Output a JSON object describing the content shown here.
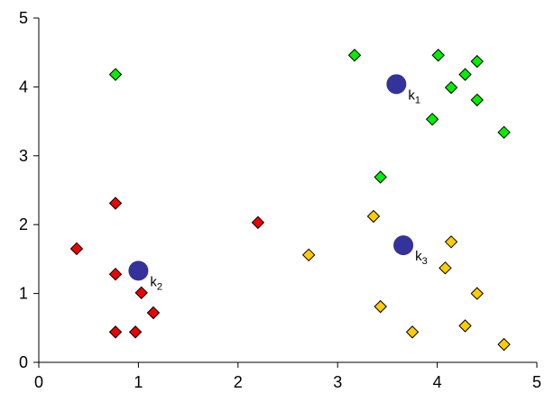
{
  "chart_data": {
    "type": "scatter",
    "title": "",
    "xlabel": "",
    "ylabel": "",
    "xlim": [
      0,
      5
    ],
    "ylim": [
      0,
      5
    ],
    "x_ticks": [
      "0",
      "1",
      "2",
      "3",
      "4",
      "5"
    ],
    "y_ticks": [
      "0",
      "1",
      "2",
      "3",
      "4",
      "5"
    ],
    "grid": false,
    "legend": "none",
    "series": [
      {
        "color": "#00ee00",
        "marker": "diamond",
        "points": [
          [
            0.77,
            4.18
          ],
          [
            3.17,
            4.46
          ],
          [
            4.01,
            4.46
          ],
          [
            4.4,
            4.37
          ],
          [
            4.28,
            4.18
          ],
          [
            4.14,
            3.99
          ],
          [
            4.4,
            3.81
          ],
          [
            3.95,
            3.53
          ],
          [
            4.67,
            3.34
          ],
          [
            3.43,
            2.69
          ]
        ]
      },
      {
        "color": "#ee0000",
        "marker": "diamond",
        "points": [
          [
            0.77,
            2.31
          ],
          [
            2.2,
            2.03
          ],
          [
            0.38,
            1.65
          ],
          [
            0.77,
            1.28
          ],
          [
            1.03,
            1.01
          ],
          [
            1.15,
            0.72
          ],
          [
            0.77,
            0.44
          ],
          [
            0.97,
            0.44
          ]
        ]
      },
      {
        "color": "#ffcc00",
        "marker": "diamond",
        "points": [
          [
            3.36,
            2.12
          ],
          [
            4.14,
            1.75
          ],
          [
            2.71,
            1.56
          ],
          [
            4.08,
            1.37
          ],
          [
            4.4,
            1.0
          ],
          [
            3.43,
            0.81
          ],
          [
            4.28,
            0.53
          ],
          [
            3.75,
            0.44
          ],
          [
            4.67,
            0.26
          ]
        ]
      }
    ],
    "centroids": {
      "color": "#333399",
      "marker": "circle",
      "points": [
        {
          "label": "k",
          "sub": "1",
          "x": 3.59,
          "y": 4.04
        },
        {
          "label": "k",
          "sub": "2",
          "x": 1.0,
          "y": 1.33
        },
        {
          "label": "k",
          "sub": "3",
          "x": 3.66,
          "y": 1.7
        }
      ]
    }
  }
}
